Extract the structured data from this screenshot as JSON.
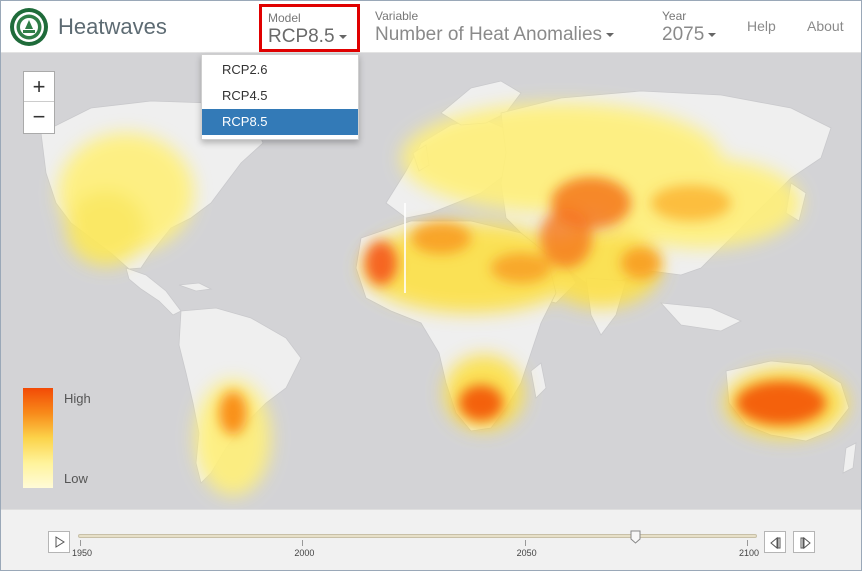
{
  "app": {
    "title": "Heatwaves"
  },
  "header": {
    "model": {
      "label": "Model",
      "value": "RCP8.5"
    },
    "variable": {
      "label": "Variable",
      "value": "Number of Heat Anomalies"
    },
    "year": {
      "label": "Year",
      "value": "2075"
    },
    "help_label": "Help",
    "about_label": "About"
  },
  "model_dropdown": {
    "options": [
      "RCP2.6",
      "RCP4.5",
      "RCP8.5"
    ],
    "selected": "RCP8.5"
  },
  "zoom": {
    "in_label": "+",
    "out_label": "−"
  },
  "legend": {
    "high_label": "High",
    "low_label": "Low",
    "colors": [
      "#f24a06",
      "#f88a1a",
      "#fcd34a",
      "#fff39b",
      "#fffbd8"
    ]
  },
  "timeline": {
    "ticks": [
      "1950",
      "2000",
      "2050",
      "2100"
    ],
    "min_year": 1950,
    "max_year": 2100,
    "current_year": 2075
  },
  "colors": {
    "ocean": "#d3d3d6",
    "land": "#efefef",
    "highlight_border": "#e00000",
    "selected_option": "#337ab7"
  }
}
